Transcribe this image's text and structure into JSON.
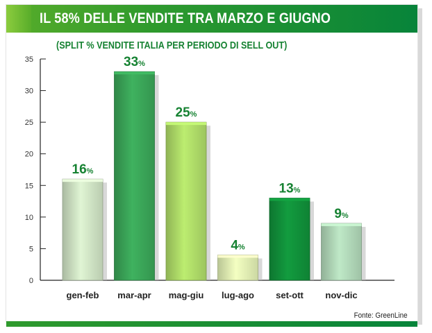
{
  "header": {
    "title": "IL 58% DELLE VENDITE TRA MARZO E GIUGNO",
    "subtitle": "(SPLIT % VENDITE ITALIA PER PERIODO DI SELL OUT)"
  },
  "footer": {
    "source": "Fonte: GreenLine"
  },
  "colors": {
    "title_bar": "#07843a",
    "accent": "#168232",
    "label": "#168232",
    "bars": [
      "#cfe3c4",
      "#3aa558",
      "#aedb68",
      "#e2f0b4",
      "#11903a",
      "#b1d8b8"
    ]
  },
  "chart_data": {
    "type": "bar",
    "title": "IL 58% DELLE VENDITE TRA MARZO E GIUGNO",
    "subtitle": "(SPLIT % VENDITE ITALIA PER PERIODO DI SELL OUT)",
    "categories": [
      "gen-feb",
      "mar-apr",
      "mag-giu",
      "lug-ago",
      "set-ott",
      "nov-dic"
    ],
    "values": [
      16,
      33,
      25,
      4,
      13,
      9
    ],
    "data_labels": [
      "16%",
      "33%",
      "25%",
      "4%",
      "13%",
      "9%"
    ],
    "yticks": [
      "0",
      "5",
      "10",
      "15",
      "20",
      "25",
      "30",
      "35"
    ],
    "ylim": [
      0,
      35
    ],
    "xlabel": "",
    "ylabel": "",
    "grid": false,
    "legend": "none"
  }
}
